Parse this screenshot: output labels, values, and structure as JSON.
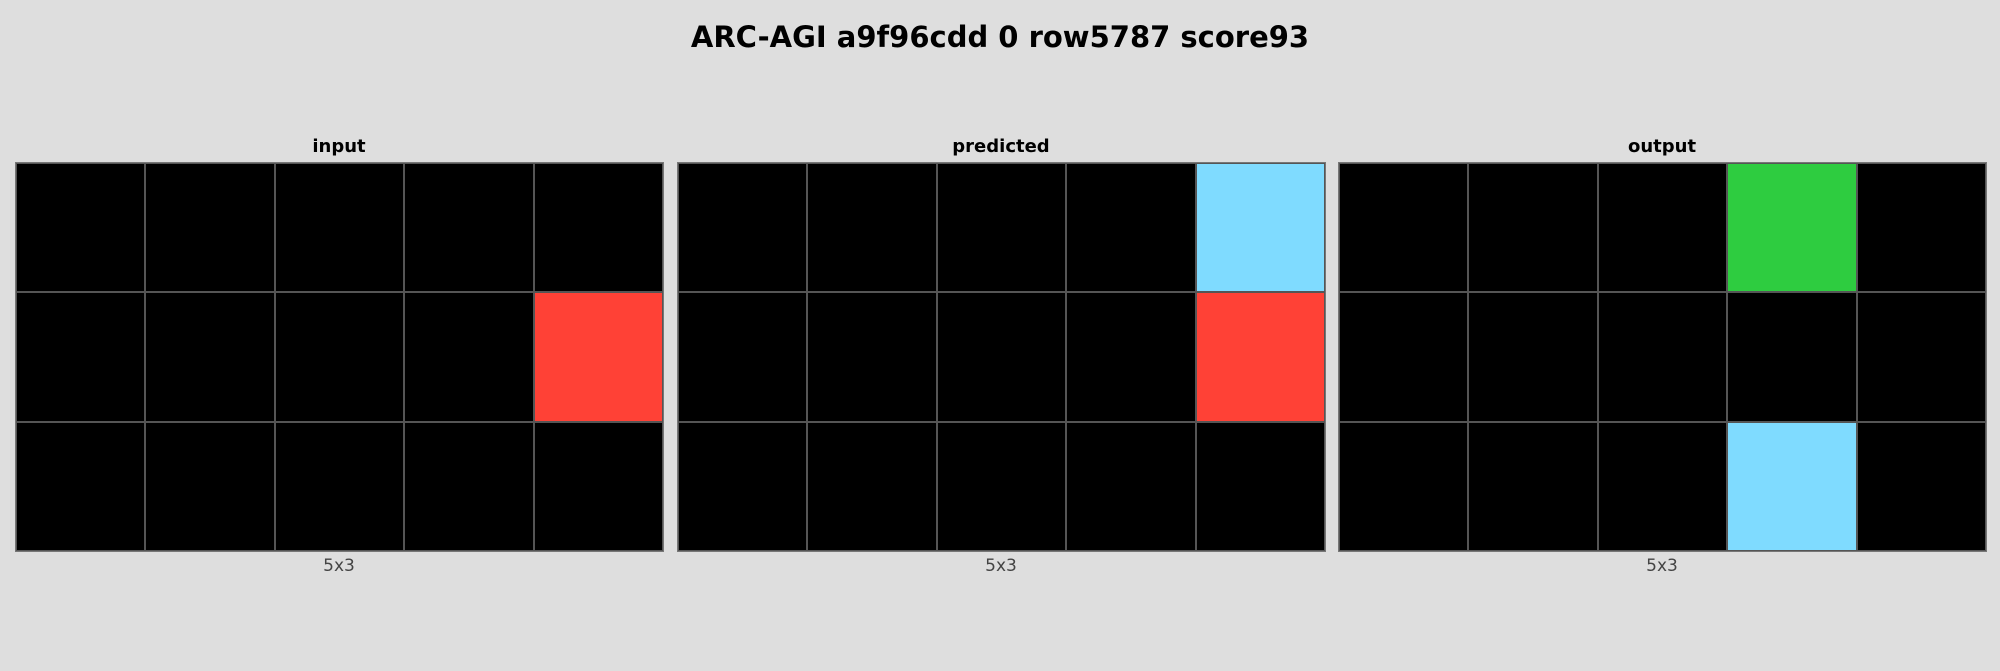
{
  "title": "ARC-AGI a9f96cdd 0 row5787 score93",
  "palette": {
    "0": "#000000",
    "2": "#ff4136",
    "3": "#2ecc40",
    "8": "#7fdbff"
  },
  "panels": [
    {
      "label": "input",
      "dims": "5x3",
      "cols": 5,
      "rows": 3,
      "cells": [
        [
          0,
          0,
          0,
          0,
          0
        ],
        [
          0,
          0,
          0,
          0,
          2
        ],
        [
          0,
          0,
          0,
          0,
          0
        ]
      ]
    },
    {
      "label": "predicted",
      "dims": "5x3",
      "cols": 5,
      "rows": 3,
      "cells": [
        [
          0,
          0,
          0,
          0,
          8
        ],
        [
          0,
          0,
          0,
          0,
          2
        ],
        [
          0,
          0,
          0,
          0,
          0
        ]
      ]
    },
    {
      "label": "output",
      "dims": "5x3",
      "cols": 5,
      "rows": 3,
      "cells": [
        [
          0,
          0,
          0,
          3,
          0
        ],
        [
          0,
          0,
          0,
          0,
          0
        ],
        [
          0,
          0,
          0,
          8,
          0
        ]
      ]
    }
  ]
}
